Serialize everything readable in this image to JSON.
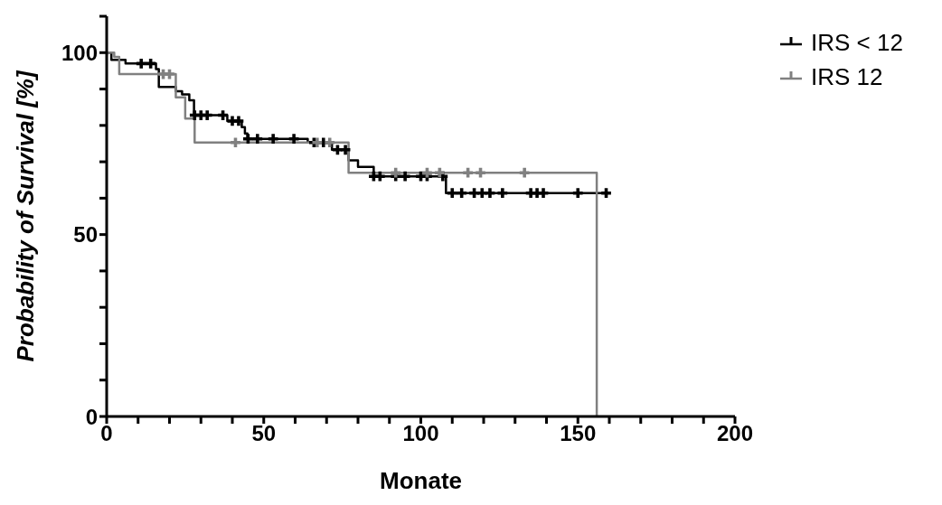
{
  "chart_data": {
    "type": "step",
    "xlabel": "Monate",
    "ylabel": "Probability of Survival [%]",
    "xlim": [
      0,
      200
    ],
    "ylim": [
      0,
      110
    ],
    "xticks": [
      0,
      {
        "value": 10,
        "label": null
      },
      {
        "value": 20,
        "label": null
      },
      {
        "value": 30,
        "label": null
      },
      {
        "value": 40,
        "label": null
      },
      50,
      {
        "value": 60,
        "label": null
      },
      {
        "value": 70,
        "label": null
      },
      {
        "value": 80,
        "label": null
      },
      {
        "value": 90,
        "label": null
      },
      100,
      {
        "value": 110,
        "label": null
      },
      {
        "value": 120,
        "label": null
      },
      {
        "value": 130,
        "label": null
      },
      {
        "value": 140,
        "label": null
      },
      150,
      {
        "value": 160,
        "label": null
      },
      {
        "value": 170,
        "label": null
      },
      {
        "value": 180,
        "label": null
      },
      {
        "value": 190,
        "label": null
      },
      200
    ],
    "yticks": [
      0,
      {
        "value": 10,
        "label": null
      },
      {
        "value": 20,
        "label": null
      },
      {
        "value": 30,
        "label": null
      },
      {
        "value": 40,
        "label": null
      },
      50,
      {
        "value": 60,
        "label": null
      },
      {
        "value": 70,
        "label": null
      },
      {
        "value": 80,
        "label": null
      },
      {
        "value": 90,
        "label": null
      },
      100,
      {
        "value": 110,
        "label": null
      }
    ],
    "legend": "top right",
    "line_style": "solid",
    "series": [
      {
        "name": "IRS < 12",
        "color": "#000000",
        "x": [
          0,
          1.5,
          6,
          15.7,
          16.6,
          22,
          24,
          26.3,
          27.8,
          38.4,
          43,
          44,
          44.8,
          64,
          71.7,
          77,
          80,
          85,
          108,
          159
        ],
        "values": [
          100,
          98,
          97,
          95.5,
          90.6,
          89.4,
          88.5,
          86.9,
          82.8,
          81.2,
          79.5,
          77.8,
          76.3,
          75.3,
          73.3,
          70.4,
          68.6,
          66,
          61.4,
          61.4
        ]
      },
      {
        "name": "IRS 12",
        "color": "#808080",
        "x": [
          0,
          2.4,
          4,
          22,
          25,
          28,
          77,
          156,
          156
        ],
        "values": [
          100,
          98.8,
          94.1,
          87.7,
          81.9,
          75.3,
          67,
          67,
          0
        ]
      },
      {
        "type": "scatter",
        "marker": "cross",
        "color": "#000000",
        "x": [
          11,
          14,
          28,
          30,
          32,
          37,
          40,
          42,
          45,
          48,
          53,
          59.6,
          66,
          69,
          73.5,
          76,
          85,
          87,
          92,
          95,
          100,
          102,
          107,
          110,
          113,
          117,
          119.5,
          122,
          126,
          135,
          137,
          139,
          150,
          159
        ],
        "values": [
          97,
          97,
          82.8,
          82.8,
          82.8,
          82.8,
          81.2,
          81.2,
          76.3,
          76.3,
          76.3,
          76.3,
          75.3,
          75.3,
          73.3,
          73.3,
          66,
          66,
          66,
          66,
          66,
          66,
          66,
          61.4,
          61.4,
          61.4,
          61.4,
          61.4,
          61.4,
          61.4,
          61.4,
          61.4,
          61.4,
          61.4
        ]
      },
      {
        "type": "scatter",
        "marker": "cross",
        "color": "#808080",
        "x": [
          18,
          20,
          41,
          67,
          71,
          92,
          102,
          106,
          115,
          119,
          133
        ],
        "values": [
          94.1,
          94.1,
          75.3,
          75.3,
          75.3,
          67,
          67,
          67,
          67,
          67,
          67
        ]
      }
    ]
  }
}
